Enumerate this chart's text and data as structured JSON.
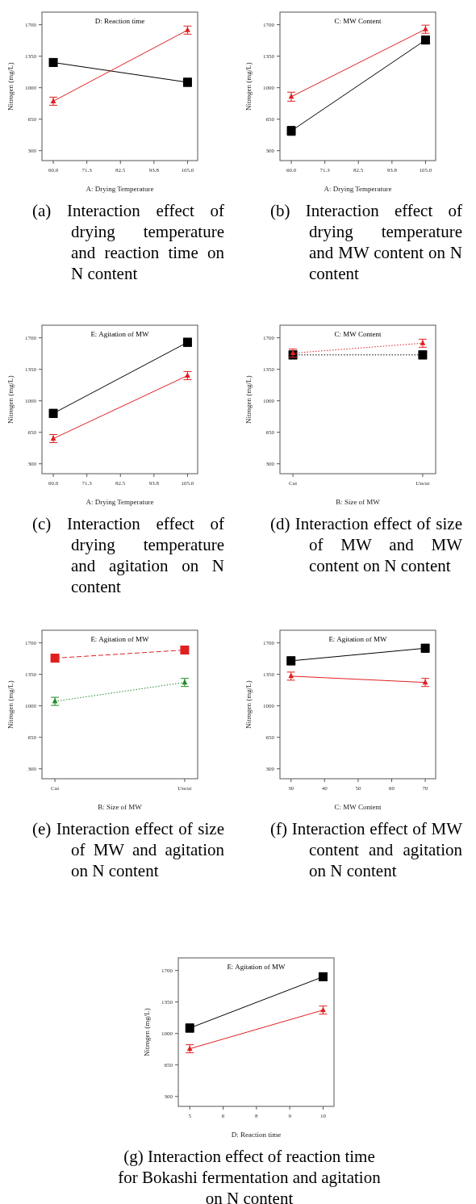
{
  "chart_data": [
    {
      "type": "line",
      "title": "D: Reaction time",
      "xlabel": "A: Drying Temperature",
      "ylabel": "Nitrogen (mg/L)",
      "x": [
        60,
        105
      ],
      "xlim": [
        56.2,
        108.4
      ],
      "xticks": [
        {
          "value": 60,
          "label": "60.0"
        },
        {
          "value": 71.25,
          "label": "71.3"
        },
        {
          "value": 82.5,
          "label": "82.5"
        },
        {
          "value": 93.75,
          "label": "93.8"
        },
        {
          "value": 105,
          "label": "105.0"
        }
      ],
      "ylim": [
        190,
        1840
      ],
      "yticks": [
        300,
        650,
        1000,
        1350,
        1700
      ],
      "line_style": "solid",
      "annotations": [
        "(a) Interaction effect of drying temperature and reaction time on N content"
      ],
      "series": [
        {
          "color": "#000000",
          "values": [
            1280,
            1060
          ],
          "errors": [
            45,
            45
          ],
          "marker": "square"
        },
        {
          "color": "#e02020",
          "values": [
            850,
            1640
          ],
          "errors": [
            45,
            45
          ],
          "marker": "triangle"
        }
      ]
    },
    {
      "type": "line",
      "title": "C: MW Content",
      "xlabel": "A: Drying Temperature",
      "ylabel": "Nitrogen (mg/L)",
      "x": [
        60,
        105
      ],
      "xlim": [
        56.2,
        108.4
      ],
      "xticks": [
        {
          "value": 60,
          "label": "60.0"
        },
        {
          "value": 71.25,
          "label": "71.3"
        },
        {
          "value": 82.5,
          "label": "82.5"
        },
        {
          "value": 93.75,
          "label": "93.8"
        },
        {
          "value": 105,
          "label": "105.0"
        }
      ],
      "ylim": [
        190,
        1840
      ],
      "yticks": [
        300,
        650,
        1000,
        1350,
        1700
      ],
      "line_style": "solid",
      "annotations": [
        "(b) Interaction effect of drying temperature and MW content on N content"
      ],
      "series": [
        {
          "color": "#000000",
          "values": [
            520,
            1530
          ],
          "errors": [
            50,
            45
          ],
          "marker": "square"
        },
        {
          "color": "#e02020",
          "values": [
            900,
            1650
          ],
          "errors": [
            50,
            45
          ],
          "marker": "triangle"
        }
      ]
    },
    {
      "type": "line",
      "title": "E: Agitation of MW",
      "xlabel": "A: Drying Temperature",
      "ylabel": "Nitrogen (mg/L)",
      "x": [
        60,
        105
      ],
      "xlim": [
        56.2,
        108.4
      ],
      "xticks": [
        {
          "value": 60,
          "label": "60.0"
        },
        {
          "value": 71.25,
          "label": "71.3"
        },
        {
          "value": 82.5,
          "label": "82.5"
        },
        {
          "value": 93.75,
          "label": "93.8"
        },
        {
          "value": 105,
          "label": "105.0"
        }
      ],
      "ylim": [
        190,
        1840
      ],
      "yticks": [
        300,
        650,
        1000,
        1350,
        1700
      ],
      "line_style": "solid",
      "annotations": [
        "(c) Interaction effect of drying temperature and agitation on N content"
      ],
      "series": [
        {
          "color": "#000000",
          "values": [
            860,
            1650
          ],
          "errors": [
            45,
            45
          ],
          "marker": "square"
        },
        {
          "color": "#e02020",
          "values": [
            580,
            1280
          ],
          "errors": [
            45,
            45
          ],
          "marker": "triangle"
        }
      ]
    },
    {
      "type": "line",
      "title": "C: MW Content",
      "xlabel": "B: Size of MW",
      "ylabel": "Nitrogen (mg/L)",
      "categories": [
        "Cut",
        "Uncut"
      ],
      "ylim": [
        190,
        1840
      ],
      "yticks": [
        300,
        650,
        1000,
        1350,
        1700
      ],
      "annotations": [
        "(d) Interaction effect of size of MW and MW content on N content"
      ],
      "series": [
        {
          "color": "#000000",
          "values": [
            1510,
            1510
          ],
          "errors": [
            45,
            45
          ],
          "marker": "square",
          "line_style": "dotted"
        },
        {
          "color": "#e02020",
          "values": [
            1530,
            1640
          ],
          "errors": [
            45,
            45
          ],
          "marker": "triangle",
          "line_style": "dotted"
        }
      ]
    },
    {
      "type": "line",
      "title": "E: Agitation of MW",
      "xlabel": "B: Size of MW",
      "ylabel": "Nitrogen (mg/L)",
      "categories": [
        "Cut",
        "Uncut"
      ],
      "ylim": [
        190,
        1840
      ],
      "yticks": [
        300,
        650,
        1000,
        1350,
        1700
      ],
      "annotations": [
        "(e) Interaction effect of size of MW and agitation on N content"
      ],
      "series": [
        {
          "color": "#e02020",
          "values": [
            1530,
            1620
          ],
          "errors": [
            45,
            45
          ],
          "marker": "square",
          "line_style": "dashed"
        },
        {
          "color": "#228b22",
          "values": [
            1050,
            1260
          ],
          "errors": [
            45,
            45
          ],
          "marker": "triangle",
          "line_style": "dotted"
        }
      ]
    },
    {
      "type": "line",
      "title": "E: Agitation of MW",
      "xlabel": "C: MW Content",
      "ylabel": "Nitrogen (mg/L)",
      "x": [
        30,
        70
      ],
      "xlim": [
        26.7,
        73.1
      ],
      "xticks": [
        30,
        40,
        50,
        60,
        70
      ],
      "ylim": [
        190,
        1840
      ],
      "yticks": [
        300,
        650,
        1000,
        1350,
        1700
      ],
      "line_style": "solid",
      "annotations": [
        "(f) Interaction effect of MW content and agitation on N content"
      ],
      "series": [
        {
          "color": "#000000",
          "values": [
            1500,
            1640
          ],
          "errors": [
            45,
            45
          ],
          "marker": "square"
        },
        {
          "color": "#e02020",
          "values": [
            1330,
            1260
          ],
          "errors": [
            45,
            45
          ],
          "marker": "triangle"
        }
      ]
    },
    {
      "type": "line",
      "title": "E: Agitation of MW",
      "xlabel": "D: Reaction time",
      "ylabel": "Nitrogen (mg/L)",
      "x": [
        5,
        10
      ],
      "xlim": [
        4.57,
        10.41
      ],
      "xticks": [
        5,
        {
          "value": 6.25,
          "label": "6"
        },
        {
          "value": 7.5,
          "label": "8"
        },
        {
          "value": 8.75,
          "label": "9"
        },
        10
      ],
      "ylim": [
        190,
        1840
      ],
      "yticks": [
        300,
        650,
        1000,
        1350,
        1700
      ],
      "line_style": "solid",
      "annotations": [
        "(g) Interaction effect of reaction time for Bokashi fermentation and agitation on N content"
      ],
      "series": [
        {
          "color": "#000000",
          "values": [
            1060,
            1630
          ],
          "errors": [
            45,
            45
          ],
          "marker": "square"
        },
        {
          "color": "#e02020",
          "values": [
            830,
            1260
          ],
          "errors": [
            45,
            45
          ],
          "marker": "triangle"
        }
      ]
    }
  ]
}
